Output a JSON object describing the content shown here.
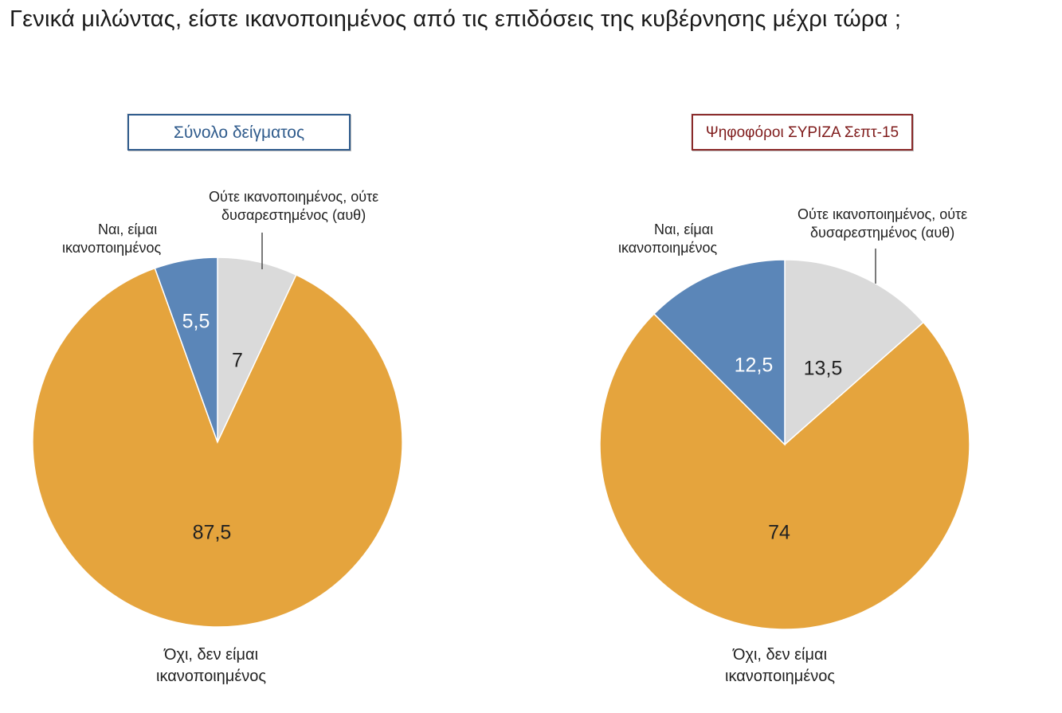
{
  "title": "Γενικά μιλώντας, είστε ικανοποιημένος από τις επιδόσεις της κυβέρνησης μέχρι τώρα ;",
  "colors": {
    "yes": "#5b86b8",
    "neither": "#dadada",
    "no": "#e5a43d",
    "box_left": "#2f5b8c",
    "box_right": "#8a2a2a"
  },
  "labels": {
    "yes_line1": "Ναι, είμαι",
    "yes_line2": "ικανοποιημένος",
    "neither_line1": "Ούτε ικανοποιημένος, ούτε",
    "neither_line2": "δυσαρεστημένος (αυθ)",
    "no_line1": "Όχι, δεν είμαι",
    "no_line2": "ικανοποιημένος"
  },
  "chart_data": [
    {
      "type": "pie",
      "title": "Σύνολο δείγματος",
      "slices": [
        {
          "label": "Ούτε ικανοποιημένος, ούτε δυσαρεστημένος (αυθ)",
          "value": 7,
          "display": "7",
          "color": "#dadada"
        },
        {
          "label": "Όχι, δεν είμαι ικανοποιημένος",
          "value": 87.5,
          "display": "87,5",
          "color": "#e5a43d"
        },
        {
          "label": "Ναι, είμαι ικανοποιημένος",
          "value": 5.5,
          "display": "5,5",
          "color": "#5b86b8"
        }
      ]
    },
    {
      "type": "pie",
      "title": "Ψηφοφόροι ΣΥΡΙΖΑ Σεπτ-15",
      "slices": [
        {
          "label": "Ούτε ικανοποιημένος, ούτε δυσαρεστημένος (αυθ)",
          "value": 13.5,
          "display": "13,5",
          "color": "#dadada"
        },
        {
          "label": "Όχι, δεν είμαι ικανοποιημένος",
          "value": 74,
          "display": "74",
          "color": "#e5a43d"
        },
        {
          "label": "Ναι, είμαι ικανοποιημένος",
          "value": 12.5,
          "display": "12,5",
          "color": "#5b86b8"
        }
      ]
    }
  ]
}
